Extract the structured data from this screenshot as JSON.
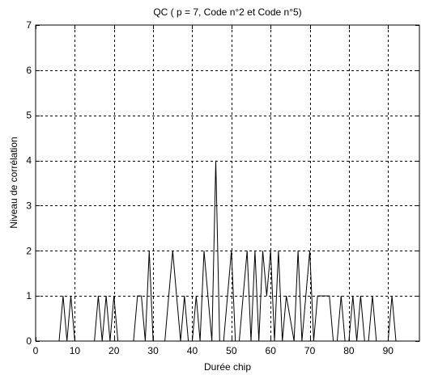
{
  "chart_data": {
    "type": "line",
    "title": "QC ( p = 7, Code n°2 et Code n°5)",
    "xlabel": "Durée chip",
    "ylabel": "Niveau de corrélation",
    "xlim": [
      0,
      98
    ],
    "ylim": [
      0,
      7
    ],
    "xticks": [
      0,
      10,
      20,
      30,
      40,
      50,
      60,
      70,
      80,
      90
    ],
    "yticks": [
      0,
      1,
      2,
      3,
      4,
      5,
      6,
      7
    ],
    "grid": true,
    "series": [
      {
        "color": "#000000",
        "x": [
          6,
          7,
          8,
          9,
          10,
          15,
          16,
          17,
          18,
          19,
          20,
          21,
          25,
          26,
          27,
          28,
          29,
          30,
          31,
          33,
          34,
          35,
          36,
          37,
          38,
          39,
          40,
          41,
          42,
          43,
          44,
          45,
          46,
          47,
          48,
          49,
          50,
          51,
          52,
          53,
          54,
          55,
          56,
          57,
          58,
          59,
          60,
          61,
          62,
          63,
          64,
          66,
          67,
          68,
          69,
          70,
          71,
          72,
          73,
          74,
          75,
          76,
          77,
          78,
          79,
          80,
          81,
          82,
          83,
          84,
          85,
          86,
          87,
          90,
          91,
          92
        ],
        "y": [
          0,
          1,
          0,
          1,
          0,
          0,
          1,
          0,
          1,
          0,
          1,
          0,
          0,
          1,
          1,
          0,
          2,
          0,
          0,
          0,
          1,
          2,
          1,
          0,
          1,
          0,
          0,
          1,
          0,
          2,
          1,
          0,
          4,
          0,
          0,
          1,
          2,
          0,
          0,
          1,
          2,
          0,
          2,
          0,
          2,
          1,
          2,
          0,
          2,
          0,
          1,
          0,
          2,
          0,
          1,
          2,
          0,
          1,
          1,
          1,
          1,
          0,
          0,
          1,
          0,
          0,
          1,
          0,
          1,
          0,
          0,
          1,
          0,
          0,
          1,
          0
        ]
      }
    ]
  }
}
